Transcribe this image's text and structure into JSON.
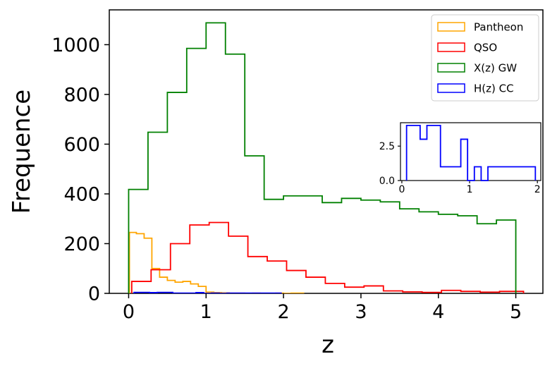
{
  "chart_data": [
    {
      "type": "histogram",
      "xlabel": "z",
      "ylabel": "Frequence",
      "xlim": [
        -0.25,
        5.35
      ],
      "ylim": [
        0,
        1140
      ],
      "xticks": [
        0,
        1,
        2,
        3,
        4,
        5
      ],
      "xtick_labels": [
        "0",
        "1",
        "2",
        "3",
        "4",
        "5"
      ],
      "yticks": [
        0,
        200,
        400,
        600,
        800,
        1000
      ],
      "ytick_labels": [
        "0",
        "200",
        "400",
        "600",
        "800",
        "1000"
      ],
      "grid": false,
      "legend": {
        "placement": "top-right"
      },
      "series": [
        {
          "name": "Pantheon",
          "color": "#FFA500",
          "edges": [
            0.01,
            0.1,
            0.2,
            0.3,
            0.4,
            0.5,
            0.6,
            0.7,
            0.8,
            0.9,
            1.0,
            1.1,
            1.2,
            1.3,
            1.4,
            1.5,
            1.6,
            1.7,
            1.8,
            1.9,
            2.0,
            2.1,
            2.26
          ],
          "counts": [
            245,
            240,
            222,
            100,
            65,
            52,
            45,
            48,
            38,
            28,
            5,
            3,
            2,
            1,
            1,
            0,
            1,
            0,
            0,
            1,
            0,
            1
          ]
        },
        {
          "name": "QSO",
          "color": "#FF0000",
          "edges": [
            0.04,
            0.29,
            0.54,
            0.79,
            1.04,
            1.29,
            1.54,
            1.79,
            2.04,
            2.29,
            2.54,
            2.79,
            3.04,
            3.29,
            3.54,
            3.79,
            4.04,
            4.29,
            4.54,
            4.79,
            5.04,
            5.1
          ],
          "counts": [
            48,
            95,
            200,
            275,
            285,
            230,
            148,
            130,
            92,
            65,
            40,
            25,
            30,
            10,
            6,
            4,
            12,
            8,
            5,
            8,
            8
          ]
        },
        {
          "name": "X(z) GW",
          "color": "#008000",
          "edges": [
            0.0,
            0.25,
            0.5,
            0.75,
            1.0,
            1.25,
            1.5,
            1.75,
            2.0,
            2.25,
            2.5,
            2.75,
            3.0,
            3.25,
            3.5,
            3.75,
            4.0,
            4.25,
            4.5,
            4.75,
            5.0
          ],
          "counts": [
            418,
            648,
            808,
            985,
            1088,
            962,
            553,
            378,
            392,
            392,
            365,
            382,
            375,
            368,
            340,
            328,
            318,
            312,
            280,
            295
          ]
        },
        {
          "name": "H(z) CC",
          "color": "#0000FF",
          "edges": [
            0.07,
            0.17,
            0.27,
            0.37,
            0.47,
            0.57,
            0.67,
            0.77,
            0.87,
            0.97,
            1.07,
            1.17,
            1.27,
            1.37,
            1.47,
            1.57,
            1.67,
            1.77,
            1.87,
            1.97
          ],
          "counts": [
            4,
            4,
            3,
            4,
            4,
            1,
            1,
            1,
            3,
            0,
            1,
            0,
            1,
            1,
            1,
            1,
            1,
            1,
            1
          ]
        }
      ]
    },
    {
      "type": "histogram",
      "role": "inset",
      "series_ref": "H(z) CC",
      "xlim": [
        -0.02,
        2.05
      ],
      "ylim": [
        0,
        4.2
      ],
      "xticks": [
        0,
        1,
        2
      ],
      "xtick_labels": [
        "0",
        "1",
        "2"
      ],
      "yticks": [
        0,
        2.5
      ],
      "ytick_labels": [
        "0.0",
        "2.5"
      ],
      "color": "#0000FF",
      "edges": [
        0.07,
        0.17,
        0.27,
        0.37,
        0.47,
        0.57,
        0.67,
        0.77,
        0.87,
        0.97,
        1.07,
        1.17,
        1.27,
        1.37,
        1.47,
        1.57,
        1.67,
        1.77,
        1.87,
        1.97
      ],
      "counts": [
        4,
        4,
        3,
        4,
        4,
        1,
        1,
        1,
        3,
        0,
        1,
        0,
        1,
        1,
        1,
        1,
        1,
        1,
        1
      ]
    }
  ]
}
